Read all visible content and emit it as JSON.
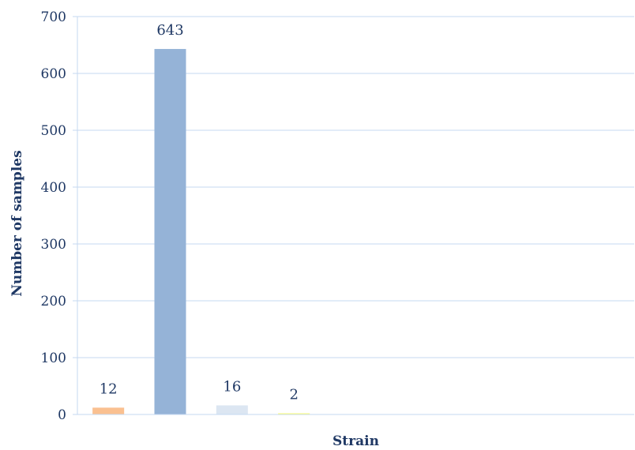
{
  "chart_data": {
    "type": "bar",
    "title": "",
    "xlabel": "Strain",
    "ylabel": "Number of samples",
    "ylim": [
      0,
      700
    ],
    "yticks": [
      0,
      100,
      200,
      300,
      400,
      500,
      600,
      700
    ],
    "grid": true,
    "legend": "none",
    "bars": [
      {
        "value": 12,
        "label": "12",
        "color": "#fac090"
      },
      {
        "value": 643,
        "label": "643",
        "color": "#95b3d7"
      },
      {
        "value": 16,
        "label": "16",
        "color": "#dce6f2"
      },
      {
        "value": 2,
        "label": "2",
        "color": "#ffff66"
      }
    ],
    "slot_count": 9
  }
}
